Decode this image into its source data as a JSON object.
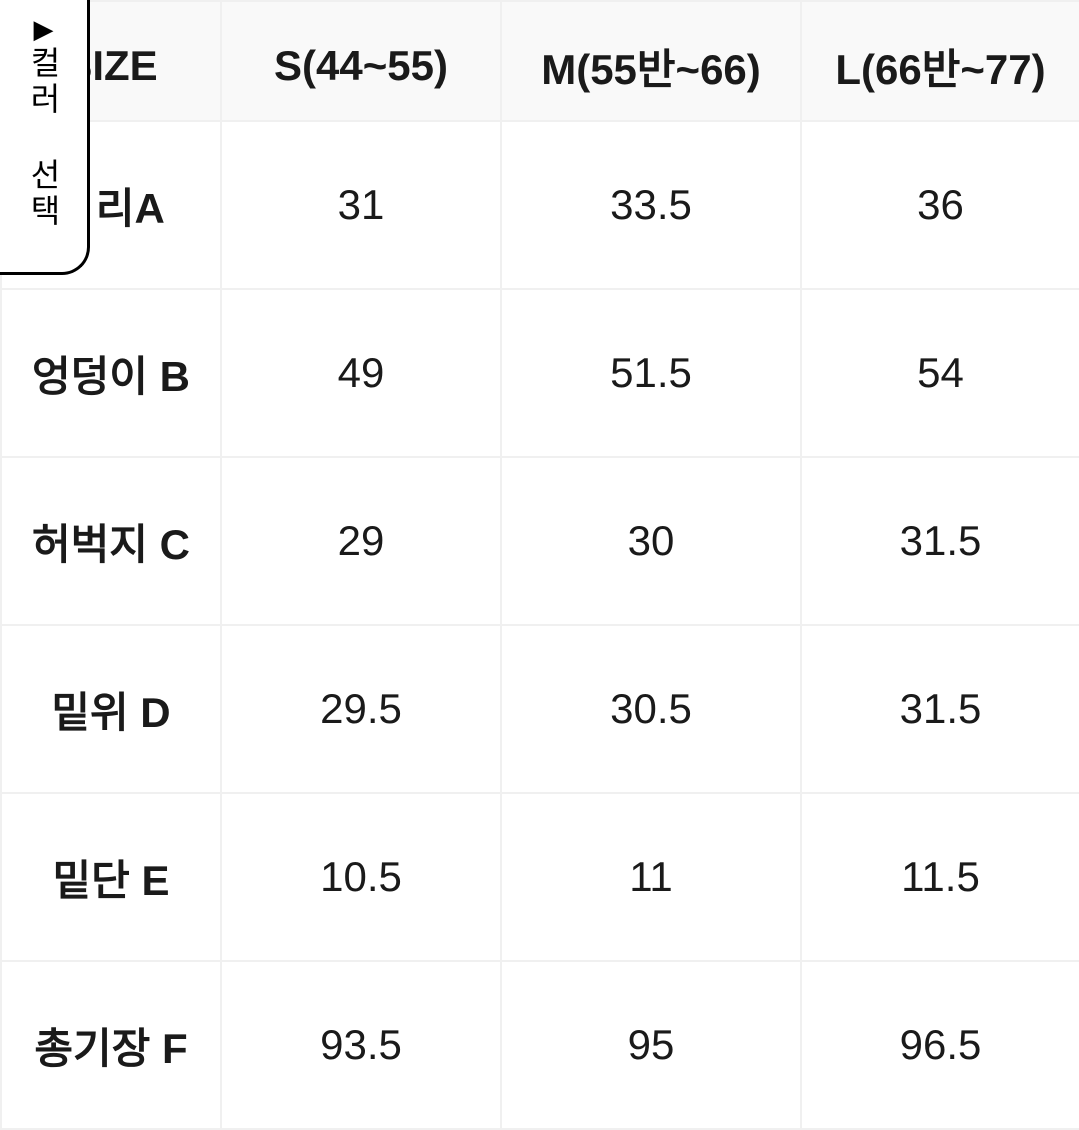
{
  "sideTab": {
    "label": "컬러 선택"
  },
  "table": {
    "type": "table",
    "columns": [
      "SIZE",
      "S(44~55)",
      "M(55반~66)",
      "L(66반~77)"
    ],
    "rows": [
      {
        "label": "ᅟᅠ리A",
        "values": [
          "31",
          "33.5",
          "36"
        ]
      },
      {
        "label": "엉덩이 B",
        "values": [
          "49",
          "51.5",
          "54"
        ]
      },
      {
        "label": "허벅지 C",
        "values": [
          "29",
          "30",
          "31.5"
        ]
      },
      {
        "label": "밑위 D",
        "values": [
          "29.5",
          "30.5",
          "31.5"
        ]
      },
      {
        "label": "밑단 E",
        "values": [
          "10.5",
          "11",
          "11.5"
        ]
      },
      {
        "label": "총기장 F",
        "values": [
          "93.5",
          "95",
          "96.5"
        ]
      }
    ],
    "header_bg": "#f9f9f9",
    "cell_bg": "#ffffff",
    "border_color": "#f0f0f0",
    "text_color": "#1a1a1a",
    "header_fontsize": 42,
    "cell_fontsize": 42
  }
}
